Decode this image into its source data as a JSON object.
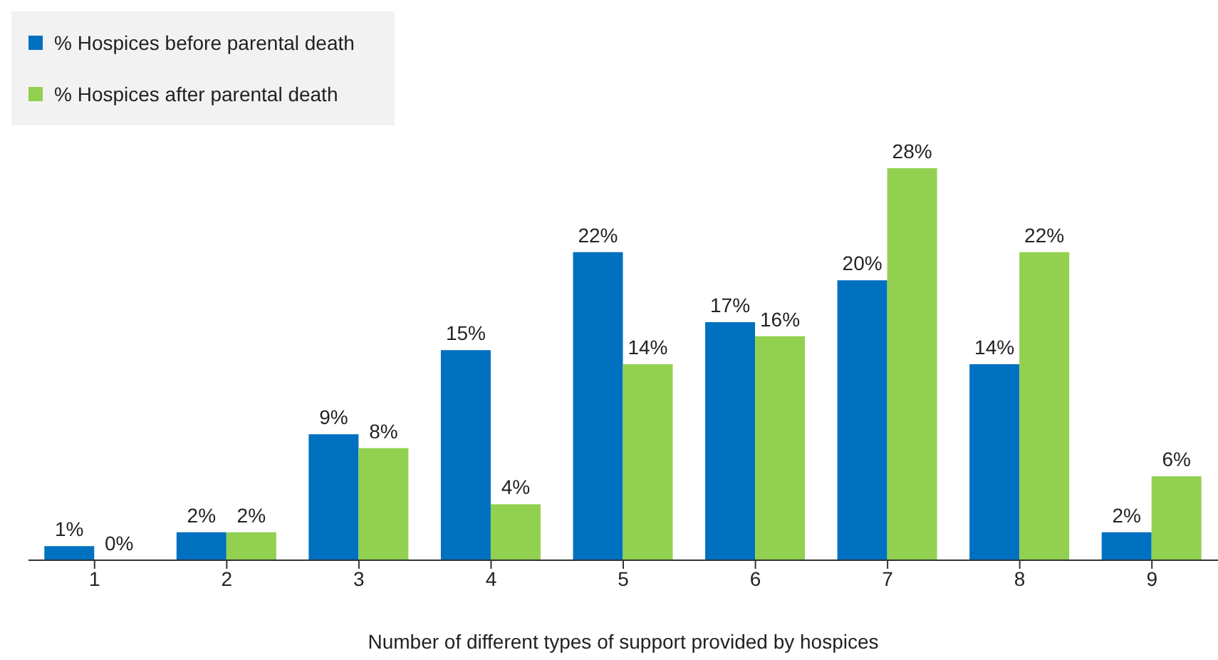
{
  "chart_data": {
    "type": "bar",
    "xlabel": "Number of different types of support provided by hospices",
    "categories": [
      "1",
      "2",
      "3",
      "4",
      "5",
      "6",
      "7",
      "8",
      "9"
    ],
    "series": [
      {
        "name": "% Hospices before parental death",
        "color": "#0070c0",
        "values": [
          1,
          2,
          9,
          15,
          22,
          17,
          20,
          14,
          2
        ],
        "value_labels": [
          "1%",
          "2%",
          "9%",
          "15%",
          "22%",
          "17%",
          "20%",
          "14%",
          "2%"
        ]
      },
      {
        "name": "% Hospices after parental death",
        "color": "#92d050",
        "values": [
          0,
          2,
          8,
          4,
          14,
          16,
          28,
          22,
          6
        ],
        "value_labels": [
          "0%",
          "2%",
          "8%",
          "4%",
          "14%",
          "16%",
          "28%",
          "22%",
          "6%"
        ]
      }
    ],
    "legend": "top left",
    "grid": false
  }
}
